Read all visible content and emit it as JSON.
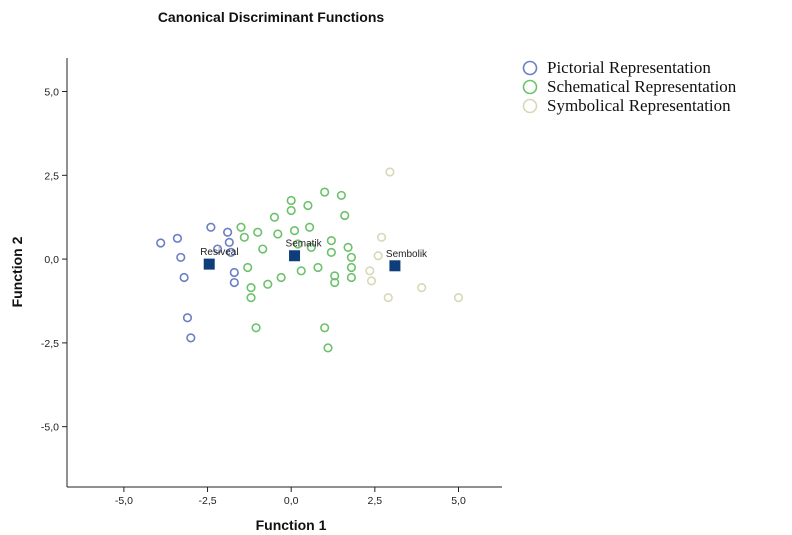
{
  "chart_data": {
    "type": "scatter",
    "title": "Canonical Discriminant Functions",
    "xlabel": "Function 1",
    "ylabel": "Function 2",
    "xlim": [
      -6.7,
      6.3
    ],
    "ylim": [
      -6.8,
      6.0
    ],
    "xticks": [
      -5.0,
      -2.5,
      0.0,
      2.5,
      5.0
    ],
    "yticks": [
      5.0,
      2.5,
      0.0,
      -2.5,
      -5.0
    ],
    "xtick_labels": [
      "-5,0",
      "-2,5",
      "0,0",
      "2,5",
      "5,0"
    ],
    "ytick_labels": [
      "5,0",
      "2,5",
      "0,0",
      "-2,5",
      "-5,0"
    ],
    "grid": false,
    "legend_position": "top-right, outside plot",
    "series": [
      {
        "name": "Pictorial Representation",
        "color": "#6a7fc4",
        "points": [
          [
            -3.9,
            0.48
          ],
          [
            -3.4,
            0.62
          ],
          [
            -3.3,
            0.05
          ],
          [
            -3.2,
            -0.55
          ],
          [
            -3.1,
            -1.75
          ],
          [
            -3.0,
            -2.35
          ],
          [
            -2.4,
            0.95
          ],
          [
            -1.9,
            0.8
          ],
          [
            -1.85,
            0.5
          ],
          [
            -1.8,
            0.2
          ],
          [
            -1.7,
            -0.4
          ],
          [
            -1.7,
            -0.7
          ],
          [
            -2.2,
            0.3
          ]
        ]
      },
      {
        "name": "Schematical Representation",
        "color": "#6cc26c",
        "points": [
          [
            -1.5,
            0.95
          ],
          [
            -1.4,
            0.65
          ],
          [
            -1.3,
            -0.25
          ],
          [
            -1.2,
            -0.85
          ],
          [
            -1.2,
            -1.15
          ],
          [
            -1.0,
            0.8
          ],
          [
            -1.05,
            -2.05
          ],
          [
            -0.85,
            0.3
          ],
          [
            -0.7,
            -0.75
          ],
          [
            -0.5,
            1.25
          ],
          [
            -0.4,
            0.75
          ],
          [
            -0.3,
            -0.55
          ],
          [
            0.0,
            1.75
          ],
          [
            0.0,
            1.45
          ],
          [
            0.1,
            0.85
          ],
          [
            0.2,
            0.45
          ],
          [
            0.3,
            -0.35
          ],
          [
            0.5,
            1.6
          ],
          [
            0.55,
            0.95
          ],
          [
            0.6,
            0.35
          ],
          [
            0.8,
            -0.25
          ],
          [
            1.0,
            2.0
          ],
          [
            1.0,
            -2.05
          ],
          [
            1.1,
            -2.65
          ],
          [
            1.2,
            0.55
          ],
          [
            1.2,
            0.2
          ],
          [
            1.3,
            -0.5
          ],
          [
            1.3,
            -0.7
          ],
          [
            1.5,
            1.9
          ],
          [
            1.6,
            1.3
          ],
          [
            1.7,
            0.35
          ],
          [
            1.8,
            0.05
          ],
          [
            1.8,
            -0.25
          ],
          [
            1.8,
            -0.55
          ]
        ]
      },
      {
        "name": "Symbolical Representation",
        "color": "#d8d8b8",
        "points": [
          [
            2.95,
            2.6
          ],
          [
            2.7,
            0.65
          ],
          [
            2.6,
            0.1
          ],
          [
            2.35,
            -0.35
          ],
          [
            2.4,
            -0.65
          ],
          [
            2.9,
            -1.15
          ],
          [
            3.9,
            -0.85
          ],
          [
            5.0,
            -1.15
          ]
        ]
      }
    ],
    "centroids": [
      {
        "label": "Resiveal",
        "x": -2.45,
        "y": -0.15
      },
      {
        "label": "Sematik",
        "x": 0.1,
        "y": 0.1
      },
      {
        "label": "Sembolik",
        "x": 3.1,
        "y": -0.2
      }
    ],
    "centroid_color": "#0f3d7a"
  }
}
